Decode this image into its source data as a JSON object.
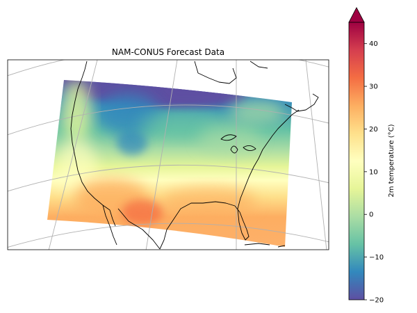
{
  "map": {
    "title": "NAM-CONUS Forecast Data",
    "region": "Continental United States",
    "projection": "Lambert Conformal Conic",
    "gridlines": true,
    "colormap": "Spectral_r"
  },
  "colorbar": {
    "label": "2m temperature (°C)",
    "vmin": -20,
    "vmax": 45,
    "extend": "max",
    "ticks": [
      {
        "value": 40,
        "text": "40"
      },
      {
        "value": 30,
        "text": "30"
      },
      {
        "value": 20,
        "text": "20"
      },
      {
        "value": 10,
        "text": "10"
      },
      {
        "value": 0,
        "text": "0"
      },
      {
        "value": -10,
        "text": "−10"
      },
      {
        "value": -20,
        "text": "−20"
      }
    ],
    "colors": [
      "#5e4fa2",
      "#3288bd",
      "#66c2a5",
      "#abdda4",
      "#e6f598",
      "#ffffbf",
      "#fee08b",
      "#fdae61",
      "#f46d43",
      "#d53e4f",
      "#9e0142"
    ]
  }
}
